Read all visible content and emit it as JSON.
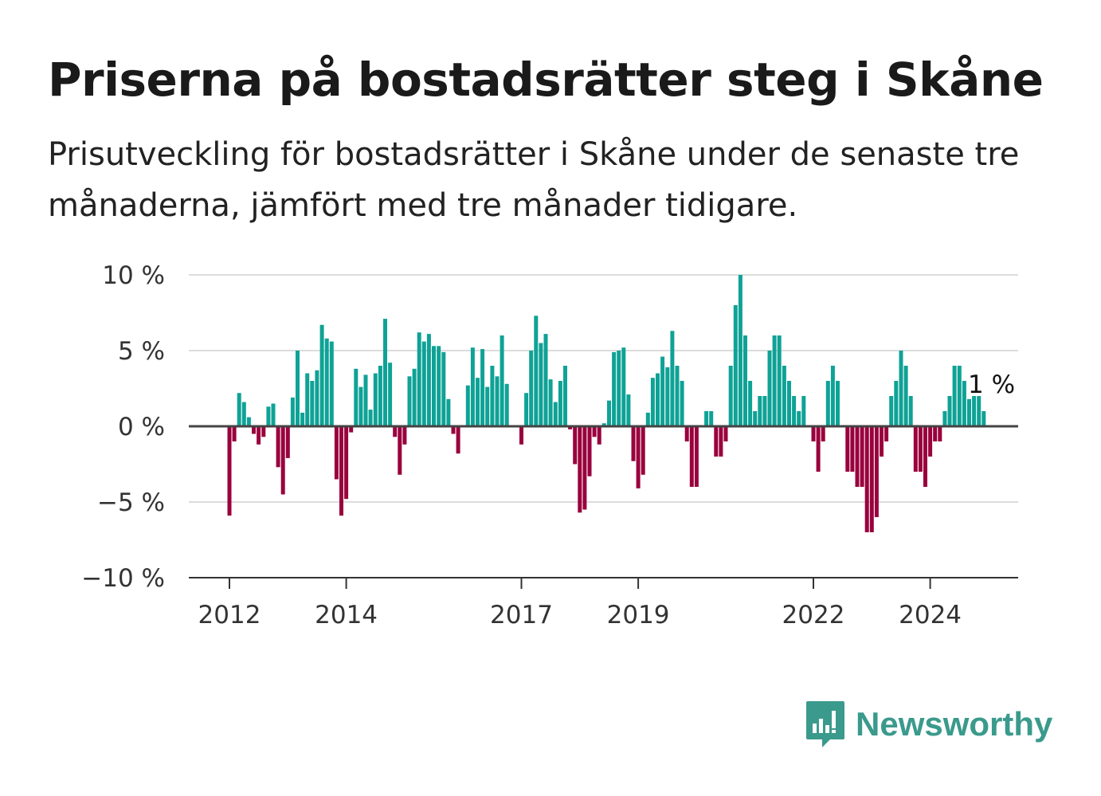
{
  "header": {
    "title": "Priserna på bostadsrätter steg i Skåne",
    "subtitle": "Prisutveckling för bostadsrätter i Skåne under de senaste tre månaderna, jämfört med tre månader tidigare."
  },
  "branding": {
    "name": "Newsworthy",
    "icon": "newsworthy-logo-icon",
    "color": "#3a9a8c"
  },
  "chart_data": {
    "type": "bar",
    "title": "Priserna på bostadsrätter steg i Skåne",
    "subtitle": "Prisutveckling för bostadsrätter i Skåne under de senaste tre månaderna, jämfört med tre månader tidigare.",
    "xlabel": "",
    "ylabel": "",
    "ylim": [
      -10,
      10
    ],
    "y_ticks": [
      {
        "value": 10,
        "label": "10 %"
      },
      {
        "value": 5,
        "label": "5 %"
      },
      {
        "value": 0,
        "label": "0 %"
      },
      {
        "value": -5,
        "label": "−5 %"
      },
      {
        "value": -10,
        "label": "−10 %"
      }
    ],
    "x_ticks": [
      {
        "value": 2012,
        "label": "2012"
      },
      {
        "value": 2014,
        "label": "2014"
      },
      {
        "value": 2017,
        "label": "2017"
      },
      {
        "value": 2019,
        "label": "2019"
      },
      {
        "value": 2022,
        "label": "2022"
      },
      {
        "value": 2024,
        "label": "2024"
      }
    ],
    "x_start": 2012.0,
    "x_step_months": 1,
    "values": [
      -5.9,
      -1.0,
      2.2,
      1.6,
      0.6,
      -0.5,
      -1.2,
      -0.7,
      1.3,
      1.5,
      -2.7,
      -4.5,
      -2.1,
      1.9,
      5.0,
      0.9,
      3.5,
      3.0,
      3.7,
      6.7,
      5.8,
      5.6,
      -3.5,
      -5.9,
      -4.8,
      -0.4,
      3.8,
      2.6,
      3.4,
      1.1,
      3.5,
      4.0,
      7.1,
      4.2,
      -0.7,
      -3.2,
      -1.2,
      3.3,
      3.8,
      6.2,
      5.6,
      6.1,
      5.3,
      5.3,
      4.9,
      1.8,
      -0.5,
      -1.8,
      0,
      2.7,
      5.2,
      3.2,
      5.1,
      2.6,
      4.0,
      3.3,
      6.0,
      2.8,
      0,
      0,
      -1.2,
      2.2,
      5.0,
      7.3,
      5.5,
      6.1,
      3.1,
      1.6,
      3.0,
      4.0,
      -0.2,
      -2.5,
      -5.7,
      -5.5,
      -3.3,
      -0.7,
      -1.2,
      0.2,
      1.7,
      4.9,
      5.0,
      5.2,
      2.1,
      -2.3,
      -4.1,
      -3.2,
      0.9,
      3.2,
      3.5,
      4.6,
      3.9,
      6.3,
      4.0,
      3.0,
      -1.0,
      -4.0,
      -4.0,
      0,
      1.0,
      1.0,
      -2.0,
      -2.0,
      -1.0,
      4.0,
      8.0,
      10.0,
      6.0,
      3.0,
      1.0,
      2.0,
      2.0,
      5.0,
      6.0,
      6.0,
      4.0,
      3.0,
      2.0,
      1.0,
      2.0,
      0,
      -1.0,
      -3.0,
      -1.0,
      3.0,
      4.0,
      3.0,
      0,
      -3.0,
      -3.0,
      -4.0,
      -4.0,
      -7.0,
      -7.0,
      -6.0,
      -2.0,
      -1.0,
      2.0,
      3.0,
      5.0,
      4.0,
      2.0,
      -3.0,
      -3.0,
      -4.0,
      -2.0,
      -1.0,
      -1.0,
      1.0,
      2.0,
      4.0,
      4.0,
      3.0,
      1.8,
      2.0,
      2.0,
      1.0
    ],
    "positive_color": "#0fa296",
    "negative_color": "#99003d",
    "annotation": {
      "text": "1 %",
      "index": 157
    },
    "grid": true,
    "legend": "none"
  }
}
